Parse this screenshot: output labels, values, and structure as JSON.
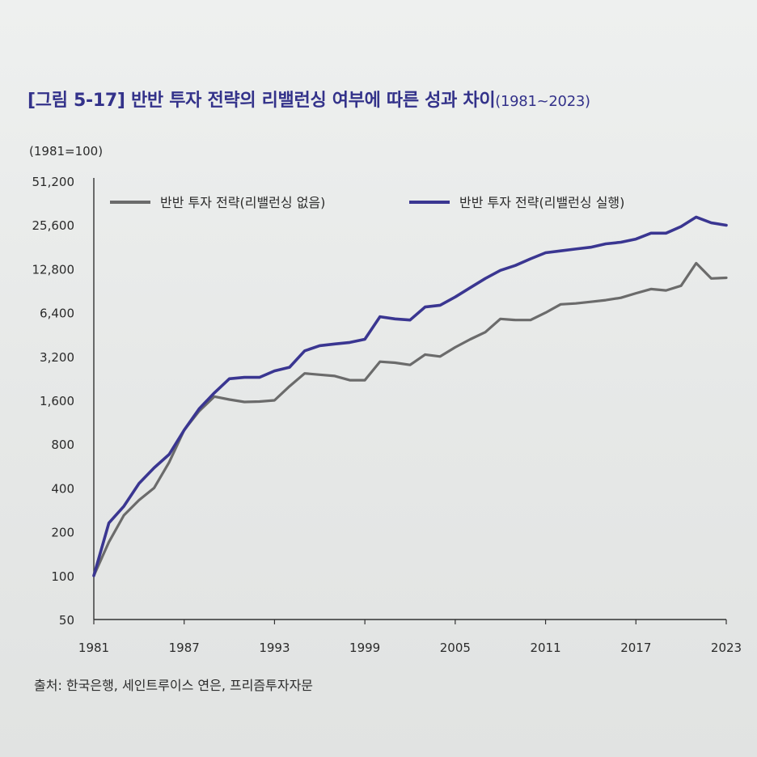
{
  "title": {
    "main": "[그림 5-17] 반반 투자 전략의 리밸런싱 여부에 따른 성과 차이",
    "range": "(1981~2023)"
  },
  "source": "출처: 한국은행, 세인트루이스 연은, 프리즘투자자문",
  "colors": {
    "title": "#33328a",
    "no_rebalance": "#6b6b6b",
    "rebalance": "#3a3691",
    "axis": "#333333"
  },
  "chart_data": {
    "type": "line",
    "unit_label": "(1981=100)",
    "y_scale": "log2",
    "ylim": [
      50,
      51200
    ],
    "y_ticks": [
      50,
      100,
      200,
      400,
      800,
      1600,
      3200,
      6400,
      12800,
      25600,
      51200
    ],
    "y_tick_labels": [
      "50",
      "100",
      "200",
      "400",
      "800",
      "1,600",
      "3,200",
      "6,400",
      "12,800",
      "25,600",
      "51,200"
    ],
    "xlim": [
      1981,
      2023
    ],
    "x_ticks": [
      1981,
      1987,
      1993,
      1999,
      2005,
      2011,
      2017,
      2023
    ],
    "x_tick_labels": [
      "1981",
      "1987",
      "1993",
      "1999",
      "2005",
      "2011",
      "2017",
      "2023"
    ],
    "grid": false,
    "legend_position": "top",
    "x": [
      1981,
      1982,
      1983,
      1984,
      1985,
      1986,
      1987,
      1988,
      1989,
      1990,
      1991,
      1992,
      1993,
      1994,
      1995,
      1996,
      1997,
      1998,
      1999,
      2000,
      2001,
      2002,
      2003,
      2004,
      2005,
      2006,
      2007,
      2008,
      2009,
      2010,
      2011,
      2012,
      2013,
      2014,
      2015,
      2016,
      2017,
      2018,
      2019,
      2020,
      2021,
      2022,
      2023
    ],
    "series": [
      {
        "name": "반반 투자 전략(리밸런싱 없음)",
        "color": "#6b6b6b",
        "values": [
          100,
          170,
          260,
          330,
          400,
          600,
          1000,
          1350,
          1700,
          1620,
          1560,
          1570,
          1600,
          2000,
          2450,
          2400,
          2350,
          2200,
          2200,
          2950,
          2900,
          2800,
          3300,
          3200,
          3700,
          4200,
          4700,
          5800,
          5700,
          5700,
          6400,
          7300,
          7400,
          7600,
          7800,
          8100,
          8700,
          9300,
          9100,
          9800,
          14000,
          11000,
          11100
        ]
      },
      {
        "name": "반반 투자 전략(리밸런싱 실행)",
        "color": "#3a3691",
        "values": [
          100,
          230,
          300,
          430,
          550,
          680,
          1000,
          1400,
          1800,
          2250,
          2300,
          2300,
          2550,
          2700,
          3500,
          3800,
          3900,
          4000,
          4200,
          6000,
          5800,
          5700,
          7000,
          7200,
          8200,
          9500,
          11000,
          12500,
          13500,
          15000,
          16500,
          17000,
          17500,
          18000,
          19000,
          19500,
          20500,
          22500,
          22500,
          25000,
          29000,
          26500,
          25500
        ]
      }
    ]
  }
}
